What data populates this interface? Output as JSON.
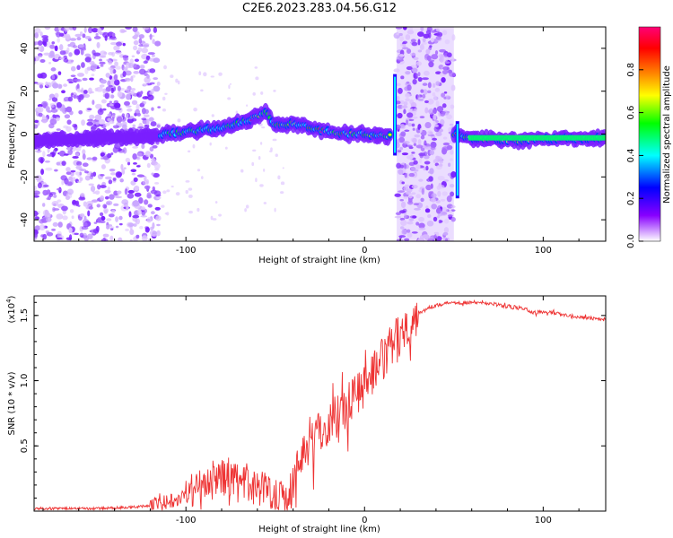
{
  "title": "C2E6.2023.283.04.56.G12",
  "chart_data": [
    {
      "type": "heatmap",
      "xlabel": "Height of straight line (km)",
      "ylabel": "Frequency (Hz)",
      "xlim": [
        -185,
        135
      ],
      "ylim": [
        -50,
        50
      ],
      "xticks": [
        -100,
        0,
        100
      ],
      "yticks": [
        -40,
        -20,
        0,
        20,
        40
      ],
      "colorbar": {
        "label": "Normalized spectral amplitude",
        "range": [
          0.0,
          1.0
        ],
        "ticks": [
          "0.0",
          "0.2",
          "0.4",
          "0.6",
          "0.8"
        ],
        "colormap": [
          "#ff00ff",
          "#ff0000",
          "#ffa500",
          "#ffff00",
          "#00ff00",
          "#00ffff",
          "#0000ff",
          "#7700ff",
          "#ffffff"
        ]
      },
      "dominant_frequency_trace": [
        {
          "x": -185,
          "y": -3
        },
        {
          "x": -150,
          "y": -2
        },
        {
          "x": -120,
          "y": -1
        },
        {
          "x": -100,
          "y": 1
        },
        {
          "x": -90,
          "y": 2
        },
        {
          "x": -80,
          "y": 3
        },
        {
          "x": -70,
          "y": 5
        },
        {
          "x": -60,
          "y": 8
        },
        {
          "x": -55,
          "y": 11
        },
        {
          "x": -50,
          "y": 4
        },
        {
          "x": -40,
          "y": 5
        },
        {
          "x": -30,
          "y": 3
        },
        {
          "x": -20,
          "y": 1
        },
        {
          "x": -10,
          "y": 0
        },
        {
          "x": 0,
          "y": 0
        },
        {
          "x": 10,
          "y": -1
        },
        {
          "x": 20,
          "y": 0
        },
        {
          "x": 50,
          "y": 0
        },
        {
          "x": 60,
          "y": -2
        },
        {
          "x": 80,
          "y": -3
        },
        {
          "x": 90,
          "y": -3
        },
        {
          "x": 100,
          "y": -2
        },
        {
          "x": 120,
          "y": -2
        },
        {
          "x": 135,
          "y": -2
        }
      ],
      "noise_bands": [
        {
          "x_range": [
            -185,
            -115
          ],
          "description": "scattered low-amplitude noise"
        },
        {
          "x_range": [
            18,
            50
          ],
          "description": "scattered low-amplitude noise"
        }
      ]
    },
    {
      "type": "line",
      "xlabel": "Height of straight line (km)",
      "ylabel": "SNR (10 * v/v)",
      "yscale_label": "(x10",
      "yscale_exponent": "4",
      "yscale_suffix": ")",
      "xlim": [
        -185,
        135
      ],
      "ylim": [
        0,
        1.65
      ],
      "xticks": [
        -100,
        0,
        100
      ],
      "yticks": [
        0.5,
        1.0,
        1.5
      ],
      "ytick_labels": [
        "0.5",
        "1.0",
        "1.5"
      ],
      "color": "#ee3333",
      "series": [
        {
          "x": [
            -185,
            -170,
            -150,
            -130,
            -115,
            -105,
            -100,
            -95,
            -90,
            -85,
            -80,
            -75,
            -70,
            -65,
            -60,
            -55,
            -50,
            -45,
            -40,
            -35,
            -30,
            -25,
            -20,
            -15,
            -10,
            -5,
            0,
            5,
            10,
            15,
            20,
            25,
            30,
            35,
            40,
            50,
            60,
            70,
            80,
            90,
            95,
            100,
            110,
            120,
            135
          ],
          "y": [
            0.02,
            0.02,
            0.02,
            0.03,
            0.05,
            0.1,
            0.13,
            0.18,
            0.22,
            0.25,
            0.26,
            0.24,
            0.22,
            0.2,
            0.18,
            0.17,
            0.14,
            0.12,
            0.2,
            0.45,
            0.55,
            0.6,
            0.68,
            0.75,
            0.82,
            0.9,
            0.98,
            1.05,
            1.15,
            1.25,
            1.35,
            1.45,
            1.52,
            1.55,
            1.58,
            1.6,
            1.6,
            1.59,
            1.57,
            1.55,
            1.52,
            1.53,
            1.51,
            1.49,
            1.47
          ]
        }
      ]
    }
  ]
}
